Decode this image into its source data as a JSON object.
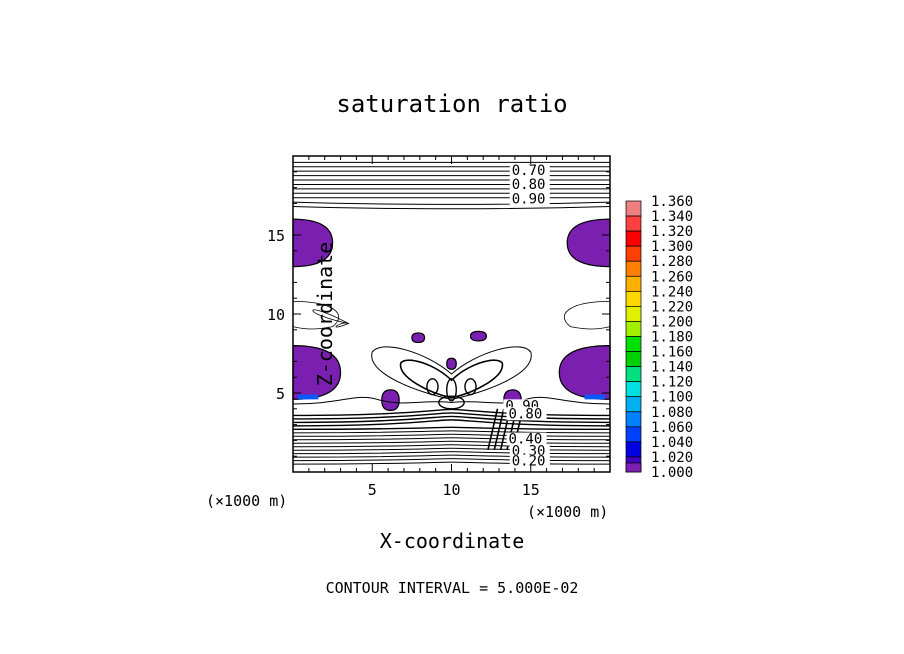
{
  "chart_data": {
    "type": "heatmap",
    "title": "saturation ratio",
    "xlabel": "X-coordinate",
    "ylabel": "Z-coordinate",
    "x_unit": "(×1000 m)",
    "z_unit": "(×1000 m)",
    "x_ticks": [
      "5",
      "10",
      "15"
    ],
    "y_ticks": [
      "5",
      "10",
      "15"
    ],
    "xlim": [
      0,
      20
    ],
    "ylim": [
      0,
      20
    ],
    "contour_interval_text": "CONTOUR INTERVAL = 5.000E-02",
    "contour_labels": [
      "0.70",
      "0.80",
      "0.90",
      "0.90",
      "0.80",
      "0.40",
      "0.30",
      "0.20"
    ],
    "colorbar": {
      "levels": [
        "1.360",
        "1.340",
        "1.320",
        "1.300",
        "1.280",
        "1.260",
        "1.240",
        "1.220",
        "1.200",
        "1.180",
        "1.160",
        "1.140",
        "1.120",
        "1.100",
        "1.080",
        "1.060",
        "1.040",
        "1.020",
        "1.000"
      ],
      "colors": [
        "#f08080",
        "#ff4040",
        "#ff0000",
        "#ff4000",
        "#ff8000",
        "#ffb000",
        "#ffd700",
        "#e0f000",
        "#a0f000",
        "#00e000",
        "#00d000",
        "#00e080",
        "#00e0e0",
        "#00b0f0",
        "#0080ff",
        "#0040ff",
        "#0000e0",
        "#4000c0",
        "#7a1fb0"
      ]
    },
    "regions_above_1_000": [
      {
        "x_range": [
          0,
          2.5
        ],
        "z_range": [
          13,
          16
        ]
      },
      {
        "x_range": [
          17.3,
          20
        ],
        "z_range": [
          13,
          16
        ]
      },
      {
        "x_range": [
          0,
          3
        ],
        "z_range": [
          4.6,
          8
        ]
      },
      {
        "x_range": [
          16.8,
          20
        ],
        "z_range": [
          4.6,
          8
        ]
      },
      {
        "x_range": [
          7.5,
          8.3
        ],
        "z_range": [
          8.2,
          8.8
        ]
      },
      {
        "x_range": [
          11.2,
          12.2
        ],
        "z_range": [
          8.3,
          8.9
        ]
      },
      {
        "x_range": [
          9.7,
          10.3
        ],
        "z_range": [
          6.5,
          7.2
        ]
      },
      {
        "x_range": [
          5.6,
          6.7
        ],
        "z_range": [
          3.9,
          5.2
        ]
      },
      {
        "x_range": [
          13.3,
          14.4
        ],
        "z_range": [
          3.9,
          5.2
        ]
      }
    ]
  }
}
